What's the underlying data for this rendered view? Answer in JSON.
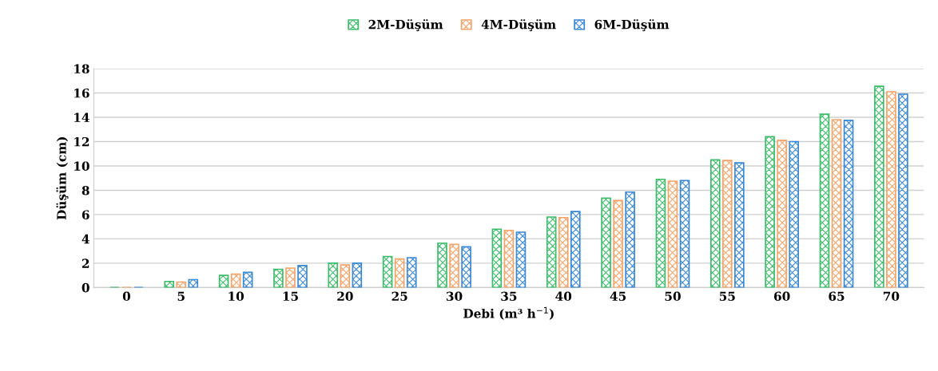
{
  "chart_data": {
    "type": "bar",
    "xlabel": "Debi (m³ h$^{−1}$)",
    "ylabel": "Düşüm (cm)",
    "categories": [
      "0",
      "5",
      "10",
      "15",
      "20",
      "25",
      "30",
      "35",
      "40",
      "45",
      "50",
      "55",
      "60",
      "65",
      "70"
    ],
    "series": [
      {
        "name": "2M-Düşüm",
        "color": "#3dbb6a",
        "values": [
          0,
          0.5,
          1.0,
          1.5,
          2.0,
          2.55,
          3.65,
          4.8,
          5.8,
          7.35,
          8.9,
          10.5,
          12.4,
          14.25,
          16.55
        ]
      },
      {
        "name": "4M-Düşüm",
        "color": "#f4a46a",
        "values": [
          0,
          0.45,
          1.1,
          1.6,
          1.85,
          2.35,
          3.55,
          4.7,
          5.75,
          7.15,
          8.75,
          10.45,
          12.1,
          13.8,
          16.1
        ]
      },
      {
        "name": "6M-Düşüm",
        "color": "#3a87d4",
        "values": [
          0,
          0.65,
          1.25,
          1.8,
          2.0,
          2.45,
          3.35,
          4.55,
          6.25,
          7.85,
          8.8,
          10.25,
          12.0,
          13.75,
          15.9
        ]
      }
    ],
    "ylim": [
      0,
      18
    ],
    "yticks": [
      0,
      2,
      4,
      6,
      8,
      10,
      12,
      14,
      16,
      18
    ],
    "grid": "y",
    "legend": "top"
  }
}
